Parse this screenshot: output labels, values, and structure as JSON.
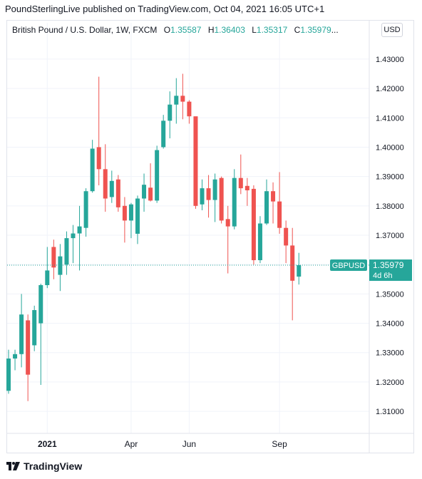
{
  "header": {
    "published": "PoundSterlingLive published on TradingView.com, Oct 04, 2021 16:05 UTC+1"
  },
  "legend": {
    "symbol": "British Pound / U.S. Dollar, 1W, FXCM",
    "o_label": "O",
    "o_value": "1.35587",
    "h_label": "H",
    "h_value": "1.36403",
    "l_label": "L",
    "l_value": "1.35317",
    "c_label": "C",
    "c_value": "1.35979",
    "more": "..."
  },
  "currency_button": "USD",
  "price_tag": {
    "symbol": "GBPUSD",
    "price": "1.35979",
    "countdown": "4d 6h"
  },
  "brand": "TradingView",
  "colors": {
    "up": "#26a69a",
    "down": "#ef5350",
    "grid": "#f0f3fa",
    "text": "#131722"
  },
  "chart_data": {
    "type": "candlestick",
    "timeframe": "1W",
    "ylim": [
      1.3025,
      1.4375
    ],
    "y_ticks": [
      "1.31000",
      "1.32000",
      "1.33000",
      "1.34000",
      "1.35000",
      "1.36000",
      "1.37000",
      "1.38000",
      "1.39000",
      "1.40000",
      "1.41000",
      "1.42000",
      "1.43000"
    ],
    "x_tick_labels": [
      {
        "label": "2021",
        "index": 6
      },
      {
        "label": "Apr",
        "index": 19
      },
      {
        "label": "Jun",
        "index": 28
      },
      {
        "label": "Sep",
        "index": 42
      }
    ],
    "last_price": 1.35979,
    "candles": [
      {
        "o": 1.317,
        "h": 1.331,
        "l": 1.316,
        "c": 1.328
      },
      {
        "o": 1.328,
        "h": 1.331,
        "l": 1.324,
        "c": 1.3295
      },
      {
        "o": 1.3295,
        "h": 1.35,
        "l": 1.325,
        "c": 1.343
      },
      {
        "o": 1.341,
        "h": 1.343,
        "l": 1.3135,
        "c": 1.3225
      },
      {
        "o": 1.3325,
        "h": 1.346,
        "l": 1.3305,
        "c": 1.3445
      },
      {
        "o": 1.34,
        "h": 1.3535,
        "l": 1.319,
        "c": 1.353
      },
      {
        "o": 1.353,
        "h": 1.366,
        "l": 1.352,
        "c": 1.358
      },
      {
        "o": 1.366,
        "h": 1.3685,
        "l": 1.355,
        "c": 1.359
      },
      {
        "o": 1.3565,
        "h": 1.367,
        "l": 1.351,
        "c": 1.3628
      },
      {
        "o": 1.36,
        "h": 1.3713,
        "l": 1.3565,
        "c": 1.369
      },
      {
        "o": 1.369,
        "h": 1.3735,
        "l": 1.3605,
        "c": 1.3706
      },
      {
        "o": 1.3706,
        "h": 1.38,
        "l": 1.358,
        "c": 1.373
      },
      {
        "o": 1.3725,
        "h": 1.386,
        "l": 1.3695,
        "c": 1.385
      },
      {
        "o": 1.385,
        "h": 1.4025,
        "l": 1.3845,
        "c": 1.3995
      },
      {
        "o": 1.4,
        "h": 1.424,
        "l": 1.387,
        "c": 1.3925
      },
      {
        "o": 1.3925,
        "h": 1.401,
        "l": 1.378,
        "c": 1.3825
      },
      {
        "o": 1.383,
        "h": 1.392,
        "l": 1.381,
        "c": 1.3885
      },
      {
        "o": 1.389,
        "h": 1.3905,
        "l": 1.378,
        "c": 1.3795
      },
      {
        "o": 1.38,
        "h": 1.383,
        "l": 1.3675,
        "c": 1.375
      },
      {
        "o": 1.375,
        "h": 1.381,
        "l": 1.369,
        "c": 1.3805
      },
      {
        "o": 1.3705,
        "h": 1.3835,
        "l": 1.367,
        "c": 1.3825
      },
      {
        "o": 1.3825,
        "h": 1.391,
        "l": 1.378,
        "c": 1.3872
      },
      {
        "o": 1.3862,
        "h": 1.3945,
        "l": 1.3815,
        "c": 1.3818
      },
      {
        "o": 1.3818,
        "h": 1.4005,
        "l": 1.381,
        "c": 1.399
      },
      {
        "o": 1.4,
        "h": 1.411,
        "l": 1.3995,
        "c": 1.409
      },
      {
        "o": 1.409,
        "h": 1.419,
        "l": 1.403,
        "c": 1.4145
      },
      {
        "o": 1.4145,
        "h": 1.4235,
        "l": 1.408,
        "c": 1.4175
      },
      {
        "o": 1.4175,
        "h": 1.425,
        "l": 1.4095,
        "c": 1.4155
      },
      {
        "o": 1.4155,
        "h": 1.416,
        "l": 1.408,
        "c": 1.4105
      },
      {
        "o": 1.4105,
        "h": 1.41,
        "l": 1.379,
        "c": 1.38
      },
      {
        "o": 1.3805,
        "h": 1.389,
        "l": 1.3785,
        "c": 1.386
      },
      {
        "o": 1.386,
        "h": 1.3905,
        "l": 1.376,
        "c": 1.382
      },
      {
        "o": 1.382,
        "h": 1.391,
        "l": 1.3745,
        "c": 1.389
      },
      {
        "o": 1.3895,
        "h": 1.39,
        "l": 1.374,
        "c": 1.375
      },
      {
        "o": 1.3755,
        "h": 1.38,
        "l": 1.357,
        "c": 1.373
      },
      {
        "o": 1.373,
        "h": 1.3925,
        "l": 1.372,
        "c": 1.3895
      },
      {
        "o": 1.3895,
        "h": 1.3975,
        "l": 1.384,
        "c": 1.386
      },
      {
        "o": 1.3868,
        "h": 1.3895,
        "l": 1.38,
        "c": 1.3853
      },
      {
        "o": 1.3858,
        "h": 1.387,
        "l": 1.36,
        "c": 1.3615
      },
      {
        "o": 1.3615,
        "h": 1.3765,
        "l": 1.3605,
        "c": 1.374
      },
      {
        "o": 1.374,
        "h": 1.389,
        "l": 1.3735,
        "c": 1.385
      },
      {
        "o": 1.385,
        "h": 1.388,
        "l": 1.374,
        "c": 1.3815
      },
      {
        "o": 1.3815,
        "h": 1.3915,
        "l": 1.3705,
        "c": 1.3725
      },
      {
        "o": 1.3725,
        "h": 1.375,
        "l": 1.3605,
        "c": 1.3665
      },
      {
        "o": 1.3665,
        "h": 1.3725,
        "l": 1.341,
        "c": 1.3545
      },
      {
        "o": 1.3559,
        "h": 1.364,
        "l": 1.3532,
        "c": 1.3598
      }
    ]
  }
}
